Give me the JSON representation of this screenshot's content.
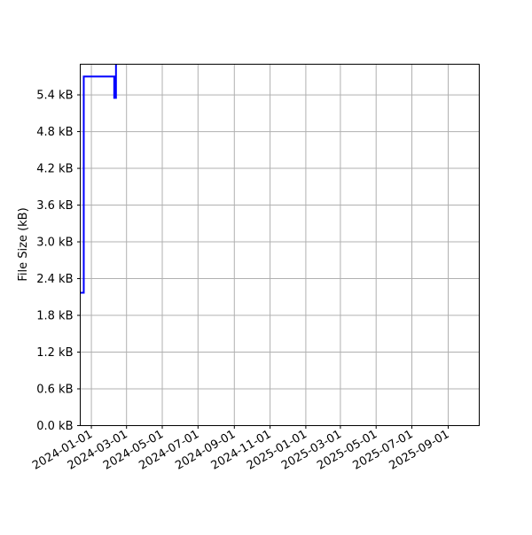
{
  "chart_data": {
    "type": "line",
    "title": "",
    "xlabel": "",
    "ylabel": "File Size (kB)",
    "xlim": [
      "2023-12-13",
      "2025-10-24"
    ],
    "ylim": [
      0,
      5.9
    ],
    "grid": true,
    "line_color": "#0000ff",
    "step": "post",
    "x_ticks": [
      "2024-01-01",
      "2024-03-01",
      "2024-05-01",
      "2024-07-01",
      "2024-09-01",
      "2024-11-01",
      "2025-01-01",
      "2025-03-01",
      "2025-05-01",
      "2025-07-01",
      "2025-09-01"
    ],
    "y_ticks": [
      0,
      0.6,
      1.2,
      1.8,
      2.4,
      3.0,
      3.6,
      4.2,
      4.8,
      5.4
    ],
    "y_tick_labels": [
      "0.0 kB",
      "0.6 kB",
      "1.2 kB",
      "1.8 kB",
      "2.4 kB",
      "3.0 kB",
      "3.6 kB",
      "4.2 kB",
      "4.8 kB",
      "5.4 kB"
    ],
    "series": [
      {
        "x": [
          "2023-12-13",
          "2023-12-19",
          "2024-02-09",
          "2024-02-12"
        ],
        "values": [
          2.17,
          5.7,
          5.35,
          6.5
        ]
      }
    ]
  }
}
